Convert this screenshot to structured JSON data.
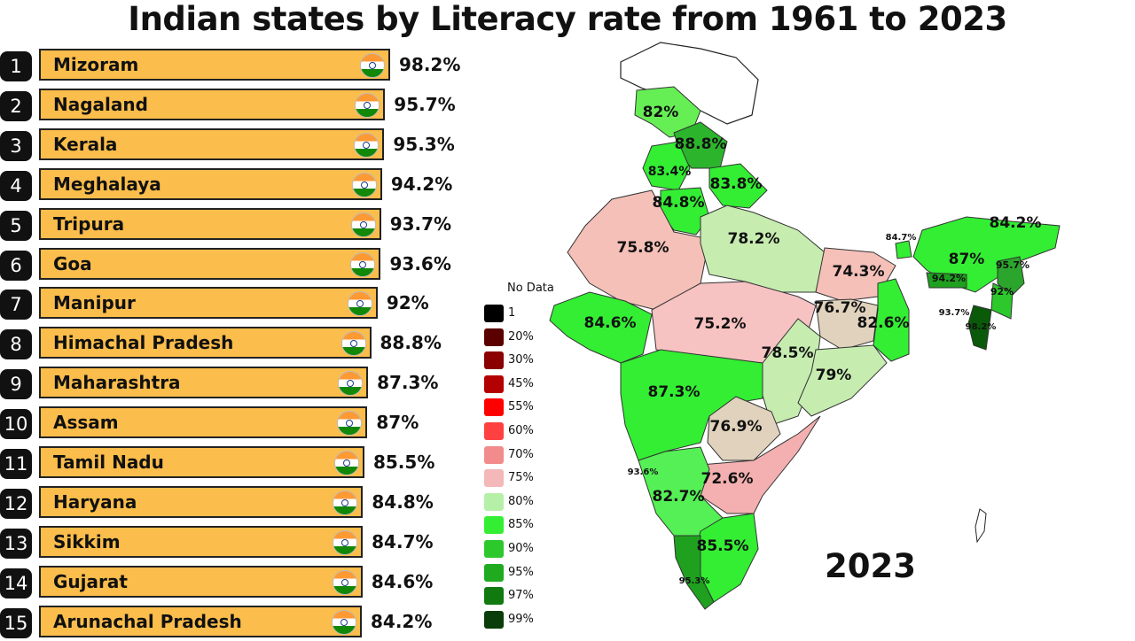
{
  "title": "Indian states by Literacy rate from 1961 to 2023",
  "year": "2023",
  "chart_data": {
    "type": "bar",
    "orientation": "horizontal",
    "title": "Indian states by Literacy rate from 1961 to 2023",
    "unit": "%",
    "categories": [
      "Mizoram",
      "Nagaland",
      "Kerala",
      "Meghalaya",
      "Tripura",
      "Goa",
      "Manipur",
      "Himachal Pradesh",
      "Maharashtra",
      "Assam",
      "Tamil Nadu",
      "Haryana",
      "Sikkim",
      "Gujarat",
      "Arunachal Pradesh"
    ],
    "values": [
      98.2,
      95.7,
      95.3,
      94.2,
      93.7,
      93.6,
      92,
      88.8,
      87.3,
      87,
      85.5,
      84.8,
      84.7,
      84.6,
      84.2
    ],
    "labels": [
      "98.2%",
      "95.7%",
      "95.3%",
      "94.2%",
      "93.7%",
      "93.6%",
      "92%",
      "88.8%",
      "87.3%",
      "87%",
      "85.5%",
      "84.8%",
      "84.7%",
      "84.6%",
      "84.2%"
    ],
    "ranks": [
      "1",
      "2",
      "3",
      "4",
      "5",
      "6",
      "7",
      "8",
      "9",
      "10",
      "11",
      "12",
      "13",
      "14",
      "15"
    ]
  },
  "legend": {
    "title": "No Data",
    "items": [
      {
        "label": "1",
        "color": "#000000"
      },
      {
        "label": "20%",
        "color": "#5a0000"
      },
      {
        "label": "30%",
        "color": "#8b0000"
      },
      {
        "label": "45%",
        "color": "#b30000"
      },
      {
        "label": "55%",
        "color": "#ff0000"
      },
      {
        "label": "60%",
        "color": "#ff4040"
      },
      {
        "label": "70%",
        "color": "#f28b8b"
      },
      {
        "label": "75%",
        "color": "#f4b8b8"
      },
      {
        "label": "80%",
        "color": "#b6f0a8"
      },
      {
        "label": "85%",
        "color": "#33ee33"
      },
      {
        "label": "90%",
        "color": "#2cc82c"
      },
      {
        "label": "95%",
        "color": "#1faa1f"
      },
      {
        "label": "97%",
        "color": "#107a10"
      },
      {
        "label": "99%",
        "color": "#0a3d0a"
      }
    ]
  },
  "map_labels": [
    "82%",
    "88.8%",
    "83.4%",
    "83.8%",
    "84.8%",
    "75.8%",
    "78.2%",
    "84.7%",
    "84.2%",
    "74.3%",
    "87%",
    "95.7%",
    "94.2%",
    "92%",
    "84.6%",
    "75.2%",
    "76.7%",
    "82.6%",
    "93.7%",
    "98.2%",
    "78.5%",
    "79%",
    "87.3%",
    "76.9%",
    "93.6%",
    "72.6%",
    "82.7%",
    "85.5%",
    "95.3%"
  ]
}
